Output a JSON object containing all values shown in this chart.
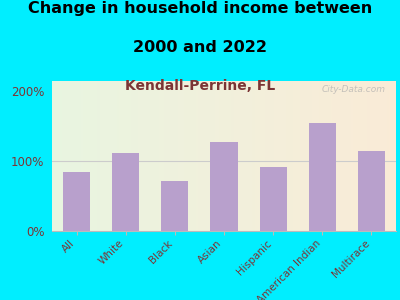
{
  "title_line1": "Change in household income between",
  "title_line2": "2000 and 2022",
  "subtitle": "Kendall-Perrine, FL",
  "categories": [
    "All",
    "White",
    "Black",
    "Asian",
    "Hispanic",
    "American Indian",
    "Multirace"
  ],
  "values": [
    85,
    112,
    72,
    128,
    92,
    155,
    115
  ],
  "bar_color": "#b8a0cc",
  "title_fontsize": 11.5,
  "subtitle_fontsize": 10,
  "subtitle_color": "#7b3535",
  "background_outer": "#00eeff",
  "watermark": "City-Data.com",
  "tick_label_color": "#7b3535",
  "ytick_fontsize": 8.5,
  "xtick_fontsize": 7.5,
  "ylim": [
    0,
    215
  ]
}
